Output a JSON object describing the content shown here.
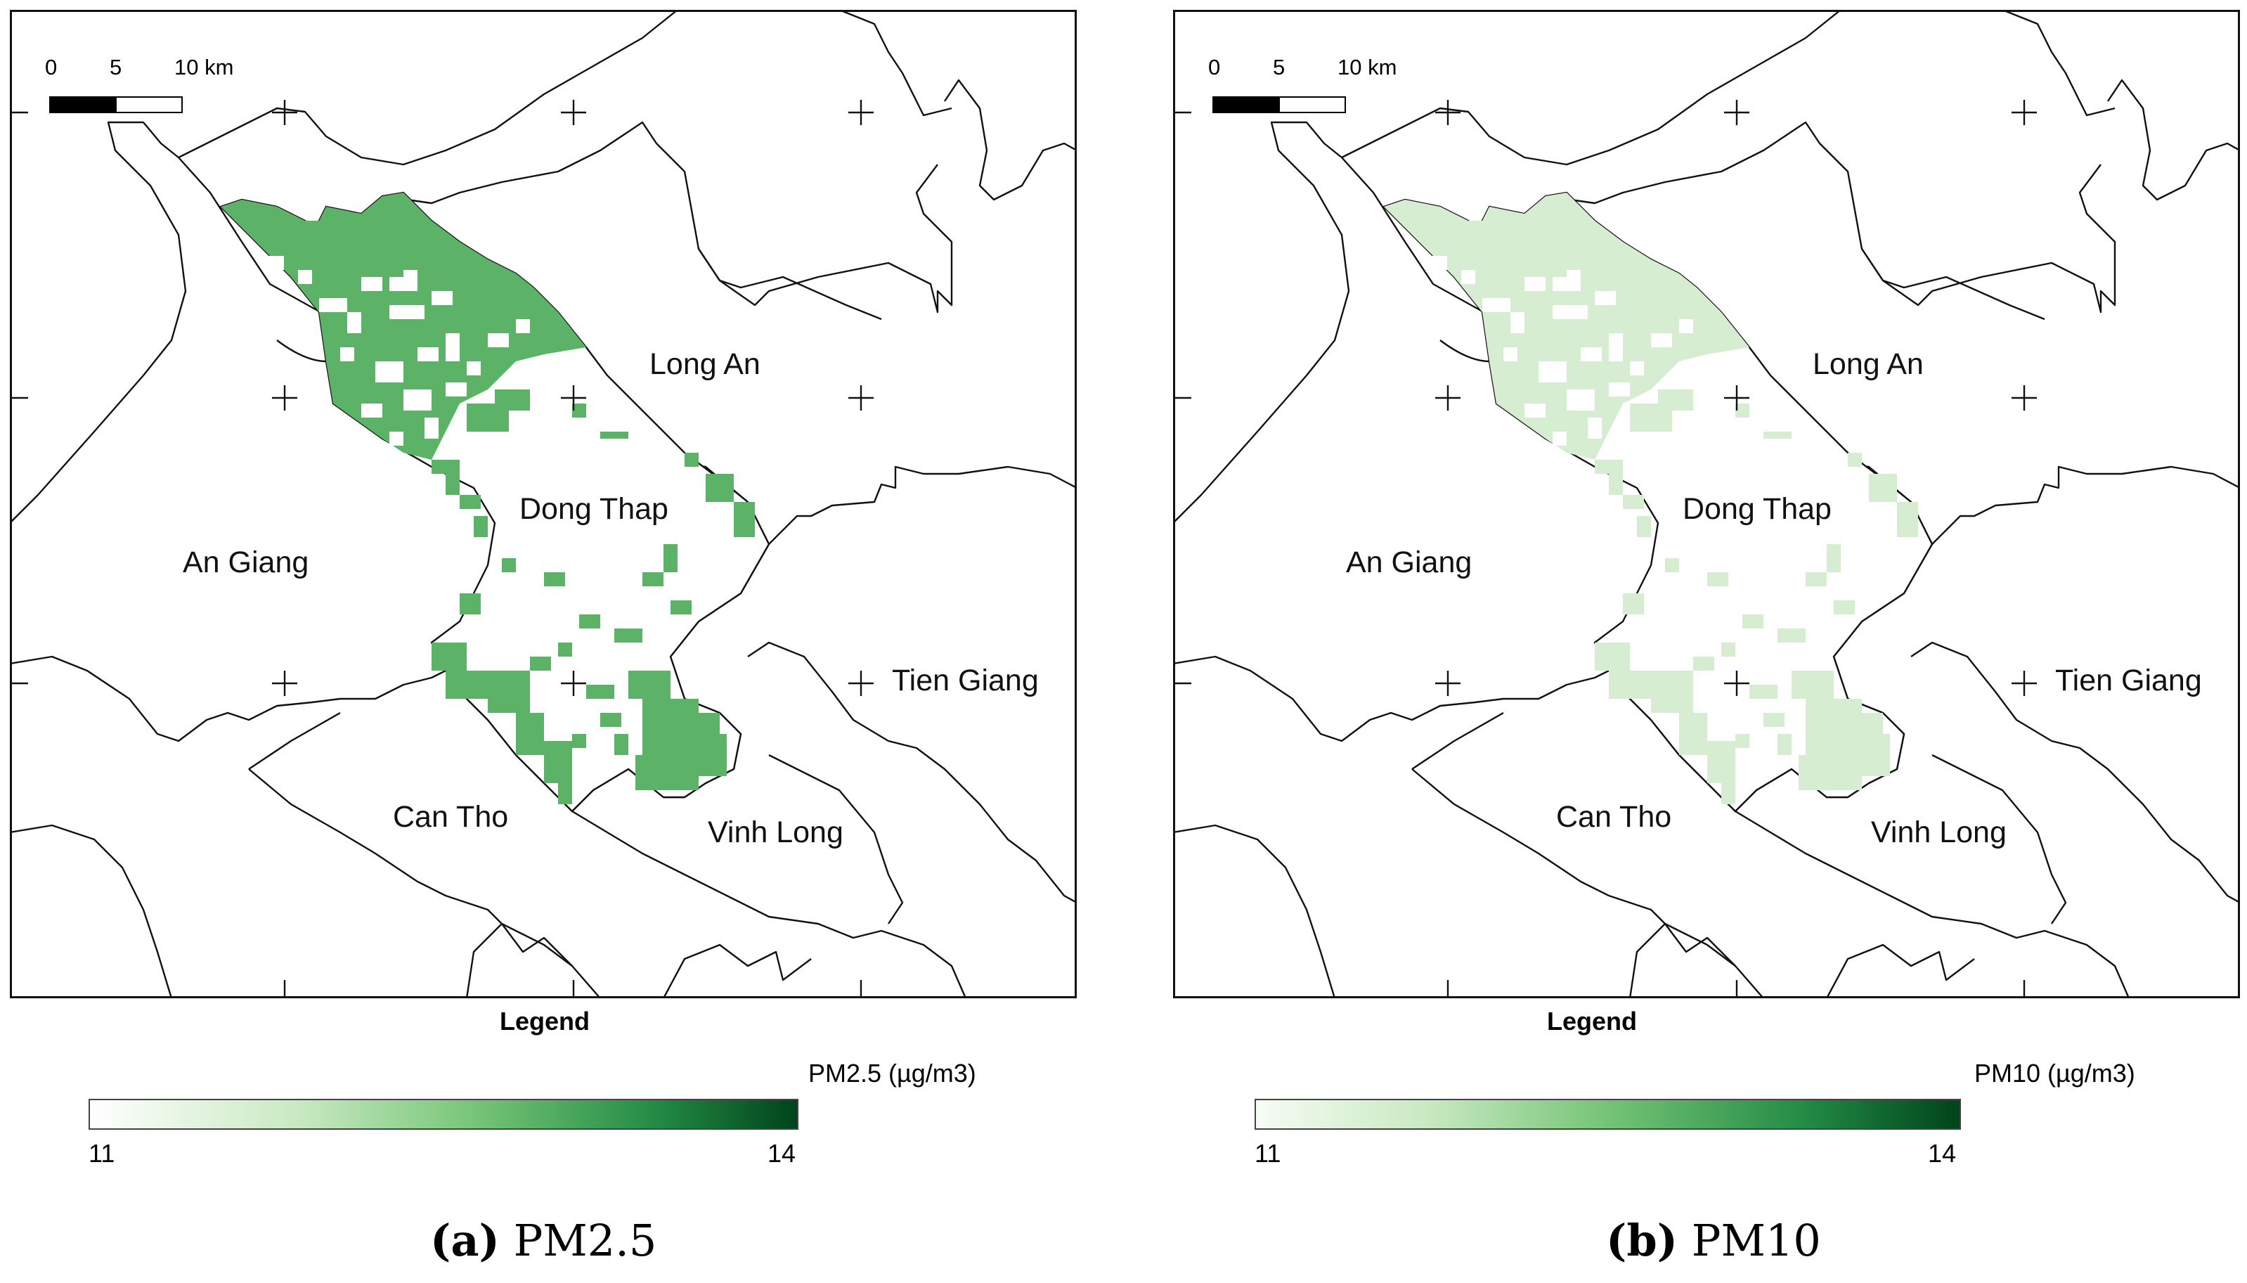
{
  "panels": [
    {
      "id": "a",
      "scale": {
        "t0": "0",
        "t1": "5",
        "t2": "10 km"
      },
      "places": {
        "long_an": "Long An",
        "dong_thap": "Dong Thap",
        "an_giang": "An Giang",
        "tien_giang": "Tien Giang",
        "can_tho": "Can Tho",
        "vinh_long": "Vinh Long"
      },
      "legend": {
        "title": "Legend",
        "unit": "PM2.5 (µg/m3)",
        "min": "11",
        "max": "14"
      },
      "caption": {
        "letter": "(a)",
        "text": "PM2.5"
      },
      "fill_color": "#5cb367"
    },
    {
      "id": "b",
      "scale": {
        "t0": "0",
        "t1": "5",
        "t2": "10 km"
      },
      "places": {
        "long_an": "Long An",
        "dong_thap": "Dong Thap",
        "an_giang": "An Giang",
        "tien_giang": "Tien Giang",
        "can_tho": "Can Tho",
        "vinh_long": "Vinh Long"
      },
      "legend": {
        "title": "Legend",
        "unit": "PM10 (µg/m3)",
        "min": "11",
        "max": "14"
      },
      "caption": {
        "letter": "(b)",
        "text": "PM10"
      },
      "fill_color": "#d6edd2"
    }
  ],
  "colorbar": {
    "low_color": "#ffffff",
    "high_color": "#00441b"
  }
}
